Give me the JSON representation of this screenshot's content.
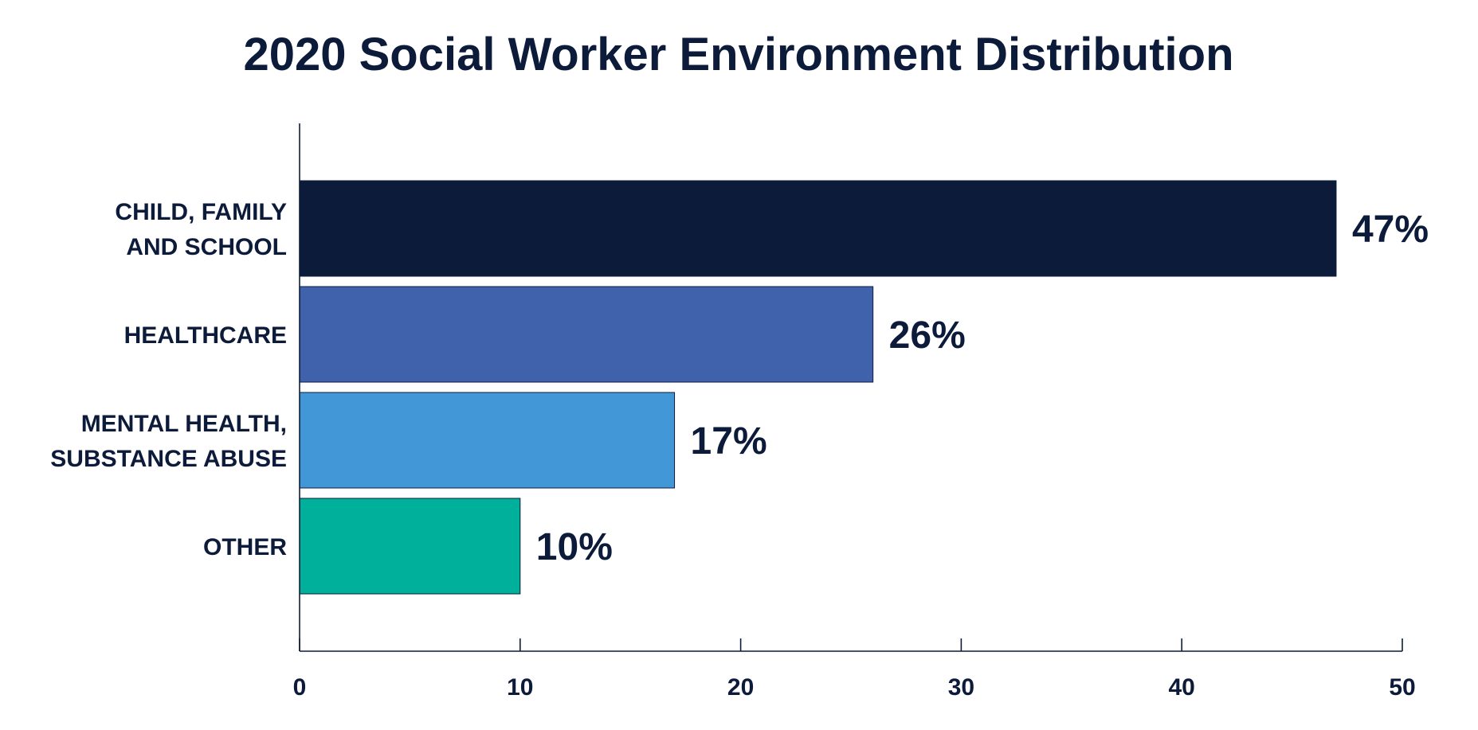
{
  "chart_data": {
    "type": "bar",
    "orientation": "horizontal",
    "title": "2020 Social Worker Environment Distribution",
    "categories": [
      [
        "CHILD, FAMILY",
        "AND SCHOOL"
      ],
      [
        "HEALTHCARE"
      ],
      [
        "MENTAL HEALTH,",
        "SUBSTANCE ABUSE"
      ],
      [
        "OTHER"
      ]
    ],
    "values": [
      47,
      26,
      17,
      10
    ],
    "data_labels": [
      "47%",
      "26%",
      "17%",
      "10%"
    ],
    "colors": [
      "#0d1b3a",
      "#4062ad",
      "#4298d6",
      "#00b09b"
    ],
    "xlabel": "",
    "ylabel": "",
    "xlim": [
      0,
      50
    ],
    "x_ticks": [
      0,
      10,
      20,
      30,
      40,
      50
    ],
    "grid": false,
    "legend": "none"
  }
}
